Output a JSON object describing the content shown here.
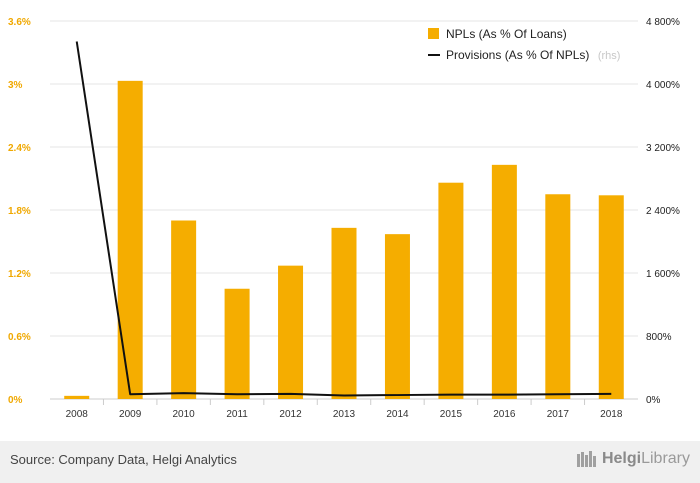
{
  "chart_data": {
    "type": "bar+line",
    "categories": [
      "2008",
      "2009",
      "2010",
      "2011",
      "2012",
      "2013",
      "2014",
      "2015",
      "2016",
      "2017",
      "2018"
    ],
    "series": [
      {
        "name": "NPLs (As % Of Loans)",
        "kind": "bar",
        "axis": "left",
        "color": "#f5ad00",
        "values": [
          0.03,
          3.03,
          1.7,
          1.05,
          1.27,
          1.63,
          1.57,
          2.06,
          2.23,
          1.95,
          1.94
        ]
      },
      {
        "name": "Provisions (As % Of NPLs)",
        "legend_suffix": "(rhs)",
        "kind": "line",
        "axis": "right",
        "color": "#111111",
        "values": [
          4540,
          60,
          75,
          60,
          65,
          45,
          50,
          55,
          55,
          60,
          65
        ]
      }
    ],
    "y_left": {
      "min": 0,
      "max": 3.6,
      "ticks": [
        "0%",
        "0.6%",
        "1.2%",
        "1.8%",
        "2.4%",
        "3%",
        "3.6%"
      ]
    },
    "y_right": {
      "min": 0,
      "max": 4800,
      "ticks": [
        "0%",
        "800%",
        "1 600%",
        "2 400%",
        "3 200%",
        "4 000%",
        "4 800%"
      ]
    },
    "grid": true,
    "legend_position": "top-right"
  },
  "footer": {
    "source": "Source: Company Data, Helgi Analytics",
    "logo_a": "Helgi",
    "logo_b": "Library"
  }
}
